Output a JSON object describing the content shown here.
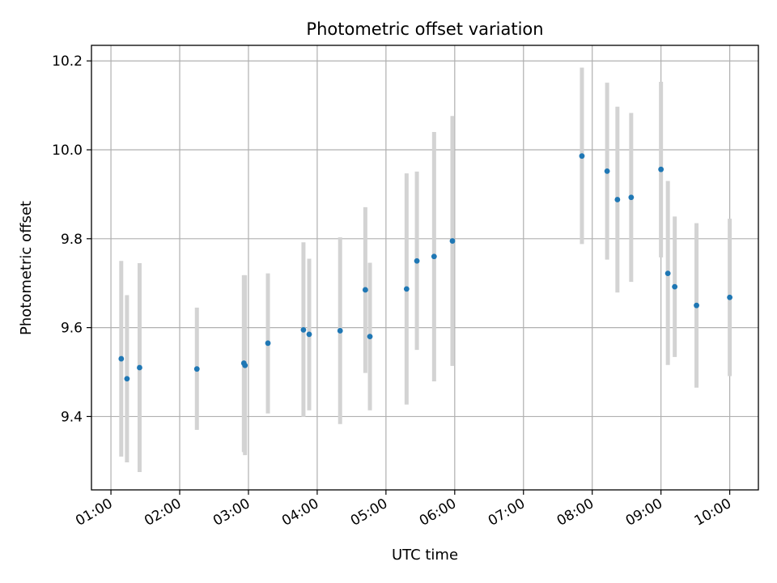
{
  "chart_data": {
    "type": "scatter",
    "title": "Photometric offset variation",
    "xlabel": "UTC time",
    "ylabel": "Photometric offset",
    "x_ticks": [
      "01:00",
      "02:00",
      "03:00",
      "04:00",
      "05:00",
      "06:00",
      "07:00",
      "08:00",
      "09:00",
      "10:00"
    ],
    "x_tick_hours": [
      1,
      2,
      3,
      4,
      5,
      6,
      7,
      8,
      9,
      10
    ],
    "y_ticks": [
      "9.4",
      "9.6",
      "9.8",
      "10.0",
      "10.2"
    ],
    "y_tick_values": [
      9.4,
      9.6,
      9.8,
      10.0,
      10.2
    ],
    "xlim": [
      "00:43",
      "10:25"
    ],
    "ylim": [
      9.235,
      10.235
    ],
    "grid": true,
    "point_color": "#1f77b4",
    "errorbar_color": "#d3d3d3",
    "points": [
      {
        "time": "01:09",
        "y": 9.53,
        "lo": 9.31,
        "hi": 9.75
      },
      {
        "time": "01:14",
        "y": 9.485,
        "lo": 9.297,
        "hi": 9.673
      },
      {
        "time": "01:25",
        "y": 9.51,
        "lo": 9.275,
        "hi": 9.745
      },
      {
        "time": "02:15",
        "y": 9.507,
        "lo": 9.37,
        "hi": 9.645
      },
      {
        "time": "02:56",
        "y": 9.52,
        "lo": 9.32,
        "hi": 9.718
      },
      {
        "time": "02:57",
        "y": 9.515,
        "lo": 9.313,
        "hi": 9.718
      },
      {
        "time": "03:17",
        "y": 9.565,
        "lo": 9.407,
        "hi": 9.722
      },
      {
        "time": "03:48",
        "y": 9.595,
        "lo": 9.399,
        "hi": 9.792
      },
      {
        "time": "03:53",
        "y": 9.585,
        "lo": 9.414,
        "hi": 9.755
      },
      {
        "time": "04:20",
        "y": 9.593,
        "lo": 9.383,
        "hi": 9.803
      },
      {
        "time": "04:42",
        "y": 9.685,
        "lo": 9.498,
        "hi": 9.871
      },
      {
        "time": "04:46",
        "y": 9.58,
        "lo": 9.414,
        "hi": 9.746
      },
      {
        "time": "05:18",
        "y": 9.687,
        "lo": 9.427,
        "hi": 9.947
      },
      {
        "time": "05:27",
        "y": 9.75,
        "lo": 9.55,
        "hi": 9.951
      },
      {
        "time": "05:42",
        "y": 9.76,
        "lo": 9.479,
        "hi": 10.04
      },
      {
        "time": "05:58",
        "y": 9.795,
        "lo": 9.514,
        "hi": 10.076
      },
      {
        "time": "07:51",
        "y": 9.986,
        "lo": 9.788,
        "hi": 10.185
      },
      {
        "time": "08:13",
        "y": 9.952,
        "lo": 9.753,
        "hi": 10.151
      },
      {
        "time": "08:22",
        "y": 9.888,
        "lo": 9.679,
        "hi": 10.097
      },
      {
        "time": "08:34",
        "y": 9.893,
        "lo": 9.703,
        "hi": 10.083
      },
      {
        "time": "09:00",
        "y": 9.956,
        "lo": 9.758,
        "hi": 10.153
      },
      {
        "time": "09:06",
        "y": 9.722,
        "lo": 9.516,
        "hi": 9.93
      },
      {
        "time": "09:12",
        "y": 9.692,
        "lo": 9.534,
        "hi": 9.85
      },
      {
        "time": "09:31",
        "y": 9.65,
        "lo": 9.465,
        "hi": 9.835
      },
      {
        "time": "10:00",
        "y": 9.668,
        "lo": 9.491,
        "hi": 9.845
      }
    ]
  }
}
